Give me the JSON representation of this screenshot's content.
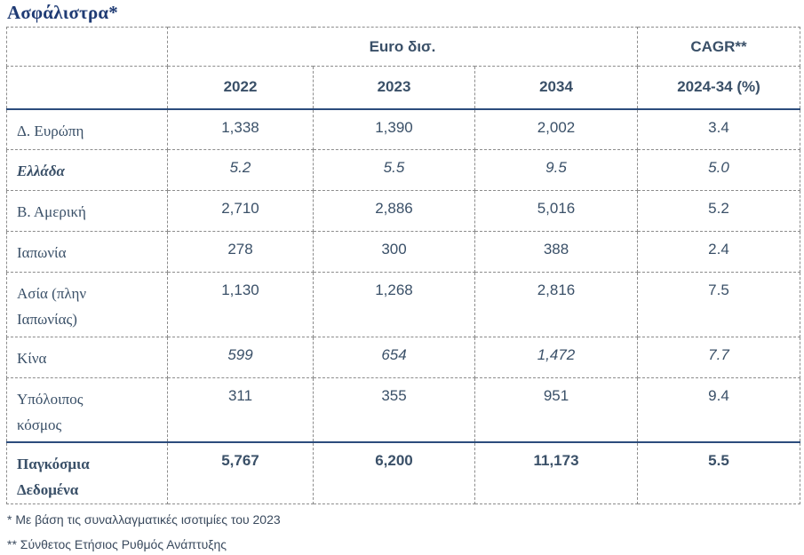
{
  "title": "Ασφάλιστρα*",
  "table": {
    "group_header_left": "Euro δισ.",
    "group_header_right": "CAGR**",
    "year_headers": [
      "2022",
      "2023",
      "2034"
    ],
    "cagr_header": "2024-34 (%)",
    "rows": [
      {
        "label": "Δ. Ευρώπη",
        "v2022": "1,338",
        "v2023": "1,390",
        "v2034": "2,002",
        "cagr": "3.4"
      },
      {
        "label": "Ελλάδα",
        "v2022": "5.2",
        "v2023": "5.5",
        "v2034": "9.5",
        "cagr": "5.0"
      },
      {
        "label": "Β. Αμερική",
        "v2022": "2,710",
        "v2023": "2,886",
        "v2034": "5,016",
        "cagr": "5.2"
      },
      {
        "label": "Ιαπωνία",
        "v2022": "278",
        "v2023": "300",
        "v2034": "388",
        "cagr": "2.4"
      },
      {
        "label_line1": "Ασία (πλην",
        "label_line2": "Ιαπωνίας)",
        "v2022": "1,130",
        "v2023": "1,268",
        "v2034": "2,816",
        "cagr": "7.5"
      },
      {
        "label": "Κίνα",
        "v2022": "599",
        "v2023": "654",
        "v2034": "1,472",
        "cagr": "7.7"
      },
      {
        "label_line1": "Υπόλοιπος",
        "label_line2": "κόσμος",
        "v2022": "311",
        "v2023": "355",
        "v2034": "951",
        "cagr": "9.4"
      },
      {
        "label_line1": "Παγκόσμια",
        "label_line2": "Δεδομένα",
        "v2022": "5,767",
        "v2023": "6,200",
        "v2034": "11,173",
        "cagr": "5.5"
      }
    ]
  },
  "footnotes": [
    "* Με βάση τις συναλλαγματικές ισοτιμίες του 2023",
    "** Σύνθετος Ετήσιος Ρυθμός Ανάπτυξης"
  ]
}
